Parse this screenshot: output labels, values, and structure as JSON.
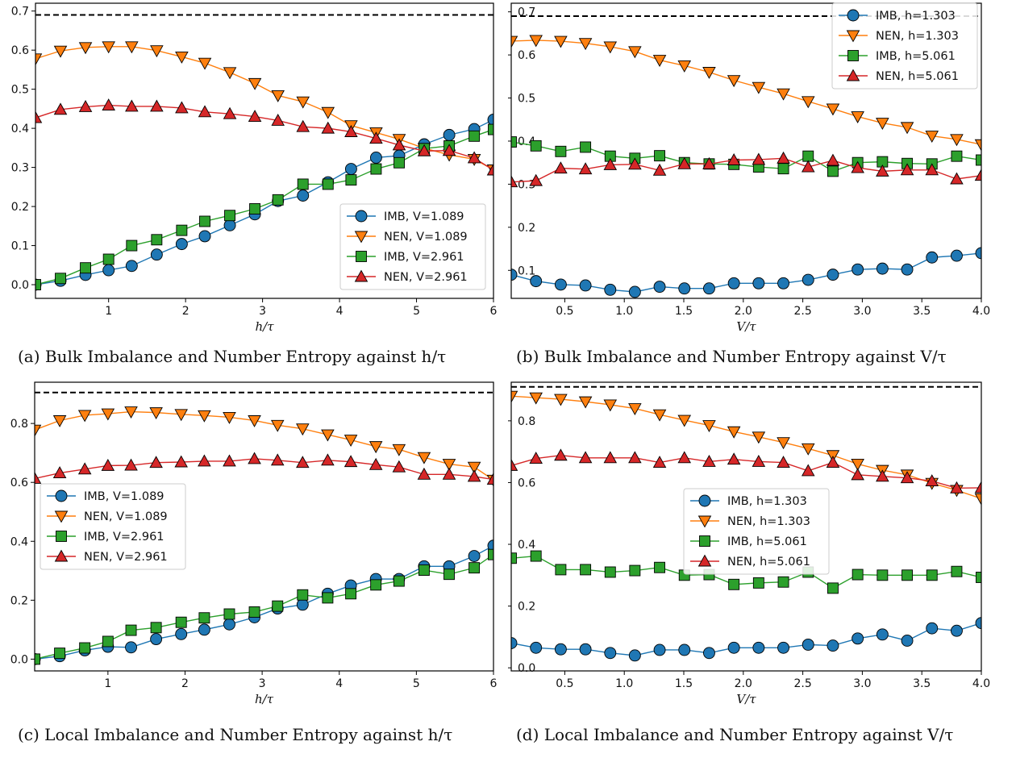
{
  "figure": {
    "captions": [
      "(a) Bulk Imbalance and Number Entropy against h/τ",
      "(b) Bulk Imbalance and Number Entropy against V/τ",
      "(c) Local Imbalance and Number Entropy against h/τ",
      "(d) Local Imbalance and Number Entropy against V/τ"
    ]
  },
  "chart_data": [
    {
      "id": "a",
      "type": "line",
      "xlabel": "h/τ",
      "ylabel": "",
      "xlim": [
        0.05,
        6.0
      ],
      "ylim": [
        -0.035,
        0.72
      ],
      "xticks": [
        1,
        2,
        3,
        4,
        5,
        6
      ],
      "xtick_labels": [
        "1",
        "2",
        "3",
        "4",
        "5",
        "6"
      ],
      "yticks": [
        0.0,
        0.1,
        0.2,
        0.3,
        0.4,
        0.5,
        0.6,
        0.7
      ],
      "ytick_labels": [
        "0.0",
        "0.1",
        "0.2",
        "0.3",
        "0.4",
        "0.5",
        "0.6",
        "0.7"
      ],
      "reference_line": 0.69,
      "legend_position": "lower-right",
      "x": [
        0.05,
        0.375,
        0.7,
        1.0,
        1.3,
        1.625,
        1.95,
        2.25,
        2.575,
        2.9,
        3.2,
        3.525,
        3.85,
        4.15,
        4.475,
        4.775,
        5.1,
        5.425,
        5.75,
        6.0
      ],
      "series": [
        {
          "name": "IMB, V=1.089",
          "color": "#1f77b4",
          "marker": "circle",
          "values": [
            0.0,
            0.01,
            0.025,
            0.037,
            0.048,
            0.077,
            0.104,
            0.124,
            0.152,
            0.18,
            0.214,
            0.228,
            0.262,
            0.296,
            0.325,
            0.33,
            0.359,
            0.383,
            0.398,
            0.422
          ]
        },
        {
          "name": "NEN, V=1.089",
          "color": "#ff7f0e",
          "marker": "triangle-down",
          "values": [
            0.578,
            0.598,
            0.607,
            0.609,
            0.609,
            0.599,
            0.583,
            0.567,
            0.543,
            0.515,
            0.484,
            0.468,
            0.441,
            0.407,
            0.389,
            0.372,
            0.349,
            0.332,
            0.321,
            0.294
          ]
        },
        {
          "name": "IMB, V=2.961",
          "color": "#2ca02c",
          "marker": "square",
          "values": [
            0.0,
            0.016,
            0.043,
            0.065,
            0.1,
            0.115,
            0.139,
            0.162,
            0.177,
            0.194,
            0.217,
            0.257,
            0.257,
            0.268,
            0.296,
            0.312,
            0.348,
            0.355,
            0.38,
            0.397
          ]
        },
        {
          "name": "NEN, V=2.961",
          "color": "#d62728",
          "marker": "triangle-up",
          "values": [
            0.427,
            0.448,
            0.455,
            0.459,
            0.456,
            0.456,
            0.452,
            0.442,
            0.437,
            0.43,
            0.42,
            0.404,
            0.4,
            0.391,
            0.374,
            0.357,
            0.342,
            0.343,
            0.324,
            0.293
          ]
        }
      ]
    },
    {
      "id": "b",
      "type": "line",
      "xlabel": "V/τ",
      "ylabel": "",
      "xlim": [
        0.05,
        4.0
      ],
      "ylim": [
        0.035,
        0.72
      ],
      "xticks": [
        0.5,
        1.0,
        1.5,
        2.0,
        2.5,
        3.0,
        3.5,
        4.0
      ],
      "xtick_labels": [
        "0.5",
        "1.0",
        "1.5",
        "2.0",
        "2.5",
        "3.0",
        "3.5",
        "4.0"
      ],
      "yticks": [
        0.1,
        0.2,
        0.3,
        0.4,
        0.5,
        0.6,
        0.7
      ],
      "ytick_labels": [
        "0.1",
        "0.2",
        "0.3",
        "0.4",
        "0.5",
        "0.6",
        "0.7"
      ],
      "reference_line": 0.69,
      "legend_position": "top-right",
      "x": [
        0.05,
        0.258,
        0.466,
        0.674,
        0.882,
        1.089,
        1.297,
        1.505,
        1.713,
        1.921,
        2.129,
        2.337,
        2.545,
        2.753,
        2.961,
        3.169,
        3.377,
        3.585,
        3.793,
        4.0
      ],
      "series": [
        {
          "name": "IMB, h=1.303",
          "color": "#1f77b4",
          "marker": "circle",
          "values": [
            0.09,
            0.075,
            0.067,
            0.065,
            0.055,
            0.05,
            0.062,
            0.058,
            0.058,
            0.07,
            0.07,
            0.07,
            0.078,
            0.09,
            0.102,
            0.104,
            0.102,
            0.13,
            0.134,
            0.14
          ]
        },
        {
          "name": "NEN, h=1.303",
          "color": "#ff7f0e",
          "marker": "triangle-down",
          "values": [
            0.632,
            0.634,
            0.632,
            0.627,
            0.619,
            0.608,
            0.588,
            0.575,
            0.56,
            0.541,
            0.525,
            0.51,
            0.492,
            0.475,
            0.457,
            0.442,
            0.432,
            0.412,
            0.404,
            0.392
          ]
        },
        {
          "name": "IMB, h=5.061",
          "color": "#2ca02c",
          "marker": "square",
          "values": [
            0.398,
            0.389,
            0.376,
            0.386,
            0.365,
            0.36,
            0.366,
            0.35,
            0.347,
            0.346,
            0.34,
            0.336,
            0.365,
            0.33,
            0.35,
            0.352,
            0.348,
            0.347,
            0.365,
            0.356
          ]
        },
        {
          "name": "NEN, h=5.061",
          "color": "#d62728",
          "marker": "triangle-up",
          "values": [
            0.305,
            0.308,
            0.337,
            0.335,
            0.345,
            0.346,
            0.332,
            0.347,
            0.347,
            0.356,
            0.357,
            0.36,
            0.34,
            0.355,
            0.338,
            0.33,
            0.333,
            0.333,
            0.312,
            0.32
          ]
        }
      ]
    },
    {
      "id": "c",
      "type": "line",
      "xlabel": "h/τ",
      "ylabel": "",
      "xlim": [
        0.05,
        6.0
      ],
      "ylim": [
        -0.04,
        0.94
      ],
      "xticks": [
        1,
        2,
        3,
        4,
        5,
        6
      ],
      "xtick_labels": [
        "1",
        "2",
        "3",
        "4",
        "5",
        "6"
      ],
      "yticks": [
        0.0,
        0.2,
        0.4,
        0.6,
        0.8
      ],
      "ytick_labels": [
        "0.0",
        "0.2",
        "0.4",
        "0.6",
        "0.8"
      ],
      "reference_line": 0.905,
      "legend_position": "center-left",
      "x": [
        0.05,
        0.375,
        0.7,
        1.0,
        1.3,
        1.625,
        1.95,
        2.25,
        2.575,
        2.9,
        3.2,
        3.525,
        3.85,
        4.15,
        4.475,
        4.775,
        5.1,
        5.425,
        5.75,
        6.0
      ],
      "series": [
        {
          "name": "IMB, V=1.089",
          "color": "#1f77b4",
          "marker": "circle",
          "values": [
            0.0,
            0.01,
            0.03,
            0.042,
            0.04,
            0.068,
            0.085,
            0.1,
            0.118,
            0.142,
            0.172,
            0.185,
            0.222,
            0.25,
            0.272,
            0.272,
            0.315,
            0.315,
            0.35,
            0.385
          ]
        },
        {
          "name": "NEN, V=1.089",
          "color": "#ff7f0e",
          "marker": "triangle-down",
          "values": [
            0.778,
            0.81,
            0.828,
            0.833,
            0.84,
            0.837,
            0.831,
            0.827,
            0.821,
            0.81,
            0.794,
            0.782,
            0.762,
            0.744,
            0.722,
            0.712,
            0.685,
            0.662,
            0.652,
            0.608
          ]
        },
        {
          "name": "IMB, V=2.961",
          "color": "#2ca02c",
          "marker": "square",
          "values": [
            0.0,
            0.02,
            0.038,
            0.06,
            0.098,
            0.107,
            0.125,
            0.14,
            0.153,
            0.16,
            0.18,
            0.218,
            0.208,
            0.222,
            0.252,
            0.265,
            0.302,
            0.288,
            0.31,
            0.355
          ]
        },
        {
          "name": "NEN, V=2.961",
          "color": "#d62728",
          "marker": "triangle-up",
          "values": [
            0.613,
            0.632,
            0.645,
            0.657,
            0.658,
            0.667,
            0.669,
            0.672,
            0.672,
            0.68,
            0.675,
            0.667,
            0.675,
            0.67,
            0.66,
            0.652,
            0.627,
            0.627,
            0.62,
            0.61
          ]
        }
      ]
    },
    {
      "id": "d",
      "type": "line",
      "xlabel": "V/τ",
      "ylabel": "",
      "xlim": [
        0.05,
        4.0
      ],
      "ylim": [
        -0.01,
        0.925
      ],
      "xticks": [
        0.5,
        1.0,
        1.5,
        2.0,
        2.5,
        3.0,
        3.5,
        4.0
      ],
      "xtick_labels": [
        "0.5",
        "1.0",
        "1.5",
        "2.0",
        "2.5",
        "3.0",
        "3.5",
        "4.0"
      ],
      "yticks": [
        0.0,
        0.2,
        0.4,
        0.6,
        0.8
      ],
      "ytick_labels": [
        "0.0",
        "0.2",
        "0.4",
        "0.6",
        "0.8"
      ],
      "reference_line": 0.91,
      "legend_position": "center",
      "x": [
        0.05,
        0.258,
        0.466,
        0.674,
        0.882,
        1.089,
        1.297,
        1.505,
        1.713,
        1.921,
        2.129,
        2.337,
        2.545,
        2.753,
        2.961,
        3.169,
        3.377,
        3.585,
        3.793,
        4.0
      ],
      "series": [
        {
          "name": "IMB, h=1.303",
          "color": "#1f77b4",
          "marker": "circle",
          "values": [
            0.08,
            0.065,
            0.06,
            0.06,
            0.048,
            0.04,
            0.058,
            0.058,
            0.048,
            0.065,
            0.065,
            0.065,
            0.075,
            0.072,
            0.095,
            0.108,
            0.088,
            0.128,
            0.12,
            0.145
          ]
        },
        {
          "name": "NEN, h=1.303",
          "color": "#ff7f0e",
          "marker": "triangle-down",
          "values": [
            0.88,
            0.875,
            0.87,
            0.862,
            0.852,
            0.84,
            0.82,
            0.802,
            0.785,
            0.765,
            0.748,
            0.73,
            0.71,
            0.688,
            0.66,
            0.64,
            0.625,
            0.598,
            0.575,
            0.548
          ]
        },
        {
          "name": "IMB, h=5.061",
          "color": "#2ca02c",
          "marker": "square",
          "values": [
            0.355,
            0.362,
            0.318,
            0.318,
            0.31,
            0.315,
            0.325,
            0.3,
            0.302,
            0.27,
            0.275,
            0.278,
            0.31,
            0.258,
            0.302,
            0.3,
            0.3,
            0.3,
            0.312,
            0.293
          ]
        },
        {
          "name": "NEN, h=5.061",
          "color": "#d62728",
          "marker": "triangle-up",
          "values": [
            0.655,
            0.678,
            0.688,
            0.68,
            0.68,
            0.68,
            0.665,
            0.68,
            0.668,
            0.675,
            0.668,
            0.665,
            0.638,
            0.665,
            0.625,
            0.62,
            0.615,
            0.605,
            0.582,
            0.583
          ]
        }
      ]
    }
  ]
}
